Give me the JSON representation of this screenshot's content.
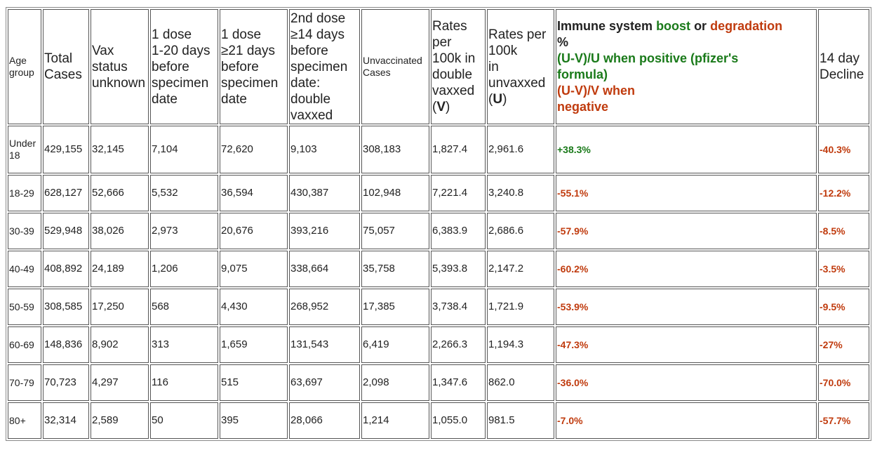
{
  "headers": {
    "age_group": [
      "Age",
      "group"
    ],
    "total_cases": [
      "Total",
      "Cases"
    ],
    "vax_unknown": [
      "Vax",
      "status",
      "unknown"
    ],
    "dose1_early": [
      "1 dose",
      "1-20 days",
      "before",
      "specimen",
      "date"
    ],
    "dose1_late": [
      "1 dose",
      "≥21 days",
      "before",
      "specimen",
      "date"
    ],
    "dose2": [
      "2nd dose",
      "≥14 days",
      "before",
      "specimen",
      "date:",
      "double",
      "vaxxed"
    ],
    "unvaccinated": [
      "Unvaccinated",
      "Cases"
    ],
    "rate_v": {
      "lines": [
        "Rates",
        "per",
        "100k in",
        "double",
        "vaxxed"
      ],
      "paren_open": "(",
      "letter": "V",
      "paren_close": ")"
    },
    "rate_u": {
      "lines": [
        "Rates per",
        "100k",
        "in",
        "unvaxxed"
      ],
      "paren_open": "(",
      "letter": "U",
      "paren_close": ")"
    },
    "immune": {
      "title_1": "Immune system ",
      "title_boost": "boost",
      "title_or": " or ",
      "title_degradation": "degradation",
      "title_pct": "%",
      "pos_line1": "(U-V)/U when positive (pfizer's",
      "pos_line2": "formula)",
      "neg_line1": "(U-V)/V when",
      "neg_line2": "negative"
    },
    "decline": [
      "14 day",
      "Decline"
    ]
  },
  "rows": [
    {
      "age": "Under 18",
      "total": "429,155",
      "unknown": "32,145",
      "d1a": "7,104",
      "d1b": "72,620",
      "d2": "9,103",
      "unvax": "308,183",
      "rv": "1,827.4",
      "ru": "2,961.6",
      "immune": "+38.3%",
      "decline": "-40.3%"
    },
    {
      "age": "18-29",
      "total": "628,127",
      "unknown": "52,666",
      "d1a": "5,532",
      "d1b": "36,594",
      "d2": "430,387",
      "unvax": "102,948",
      "rv": "7,221.4",
      "ru": "3,240.8",
      "immune": "-55.1%",
      "decline": "-12.2%"
    },
    {
      "age": "30-39",
      "total": "529,948",
      "unknown": "38,026",
      "d1a": "2,973",
      "d1b": "20,676",
      "d2": "393,216",
      "unvax": "75,057",
      "rv": "6,383.9",
      "ru": "2,686.6",
      "immune": "-57.9%",
      "decline": "-8.5%"
    },
    {
      "age": "40-49",
      "total": "408,892",
      "unknown": "24,189",
      "d1a": "1,206",
      "d1b": "9,075",
      "d2": "338,664",
      "unvax": "35,758",
      "rv": "5,393.8",
      "ru": "2,147.2",
      "immune": "-60.2%",
      "decline": "-3.5%"
    },
    {
      "age": "50-59",
      "total": "308,585",
      "unknown": "17,250",
      "d1a": "568",
      "d1b": "4,430",
      "d2": "268,952",
      "unvax": "17,385",
      "rv": "3,738.4",
      "ru": "1,721.9",
      "immune": "-53.9%",
      "decline": "-9.5%"
    },
    {
      "age": "60-69",
      "total": "148,836",
      "unknown": "8,902",
      "d1a": "313",
      "d1b": "1,659",
      "d2": "131,543",
      "unvax": "6,419",
      "rv": "2,266.3",
      "ru": "1,194.3",
      "immune": "-47.3%",
      "decline": "-27%"
    },
    {
      "age": "70-79",
      "total": "70,723",
      "unknown": "4,297",
      "d1a": "116",
      "d1b": "515",
      "d2": "63,697",
      "unvax": "2,098",
      "rv": "1,347.6",
      "ru": "862.0",
      "immune": "-36.0%",
      "decline": "-70.0%"
    },
    {
      "age": "80+",
      "total": "32,314",
      "unknown": "2,589",
      "d1a": "50",
      "d1b": "395",
      "d2": "28,066",
      "unvax": "1,214",
      "rv": "1,055.0",
      "ru": "981.5",
      "immune": "-7.0%",
      "decline": "-57.7%"
    }
  ],
  "colors": {
    "positive": "#1a7a1a",
    "negative": "#c03b0e"
  }
}
